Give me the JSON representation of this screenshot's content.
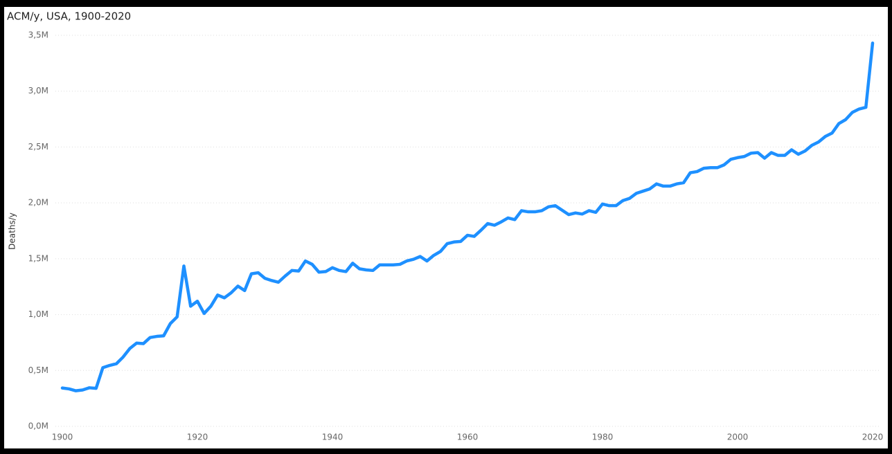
{
  "chart_data": {
    "type": "line",
    "title": "ACM/y, USA, 1900-2020",
    "y_label": "Deaths/y",
    "x": [
      1900,
      1901,
      1902,
      1903,
      1904,
      1905,
      1906,
      1907,
      1908,
      1909,
      1910,
      1911,
      1912,
      1913,
      1914,
      1915,
      1916,
      1917,
      1918,
      1919,
      1920,
      1921,
      1922,
      1923,
      1924,
      1925,
      1926,
      1927,
      1928,
      1929,
      1930,
      1931,
      1932,
      1933,
      1934,
      1935,
      1936,
      1937,
      1938,
      1939,
      1940,
      1941,
      1942,
      1943,
      1944,
      1945,
      1946,
      1947,
      1948,
      1949,
      1950,
      1951,
      1952,
      1953,
      1954,
      1955,
      1956,
      1957,
      1958,
      1959,
      1960,
      1961,
      1962,
      1963,
      1964,
      1965,
      1966,
      1967,
      1968,
      1969,
      1970,
      1971,
      1972,
      1973,
      1974,
      1975,
      1976,
      1977,
      1978,
      1979,
      1980,
      1981,
      1982,
      1983,
      1984,
      1985,
      1986,
      1987,
      1988,
      1989,
      1990,
      1991,
      1992,
      1993,
      1994,
      1995,
      1996,
      1997,
      1998,
      1999,
      2000,
      2001,
      2002,
      2003,
      2004,
      2005,
      2006,
      2007,
      2008,
      2009,
      2010,
      2011,
      2012,
      2013,
      2014,
      2015,
      2016,
      2017,
      2018,
      2019,
      2020
    ],
    "values": [
      343000,
      335000,
      318000,
      325000,
      345000,
      340000,
      525000,
      545000,
      560000,
      620000,
      697000,
      745000,
      740000,
      795000,
      805000,
      810000,
      920000,
      980000,
      1435000,
      1075000,
      1120000,
      1010000,
      1075000,
      1175000,
      1150000,
      1195000,
      1255000,
      1215000,
      1365000,
      1375000,
      1325000,
      1305000,
      1290000,
      1345000,
      1395000,
      1390000,
      1480000,
      1450000,
      1380000,
      1385000,
      1420000,
      1395000,
      1385000,
      1460000,
      1410000,
      1400000,
      1395000,
      1445000,
      1445000,
      1445000,
      1450000,
      1480000,
      1495000,
      1520000,
      1480000,
      1530000,
      1565000,
      1635000,
      1650000,
      1655000,
      1710000,
      1700000,
      1755000,
      1815000,
      1800000,
      1830000,
      1865000,
      1850000,
      1930000,
      1920000,
      1920000,
      1930000,
      1965000,
      1975000,
      1935000,
      1895000,
      1910000,
      1900000,
      1930000,
      1915000,
      1990000,
      1975000,
      1975000,
      2020000,
      2040000,
      2085000,
      2105000,
      2125000,
      2170000,
      2150000,
      2150000,
      2170000,
      2180000,
      2270000,
      2280000,
      2310000,
      2315000,
      2315000,
      2340000,
      2390000,
      2405000,
      2415000,
      2445000,
      2450000,
      2400000,
      2450000,
      2425000,
      2425000,
      2475000,
      2435000,
      2465000,
      2515000,
      2545000,
      2595000,
      2625000,
      2710000,
      2745000,
      2810000,
      2840000,
      2855000,
      3430000
    ],
    "color": "#1e90ff",
    "xlim": [
      1900,
      2020
    ],
    "xticks": [
      1900,
      1920,
      1940,
      1960,
      1980,
      2000,
      2020
    ],
    "ylim": [
      0,
      3500000
    ],
    "yticks": [
      {
        "value": 0,
        "label": "0,0M"
      },
      {
        "value": 500000,
        "label": "0,5M"
      },
      {
        "value": 1000000,
        "label": "1,0M"
      },
      {
        "value": 1500000,
        "label": "1,5M"
      },
      {
        "value": 2000000,
        "label": "2,0M"
      },
      {
        "value": 2500000,
        "label": "2,5M"
      },
      {
        "value": 3000000,
        "label": "3,0M"
      },
      {
        "value": 3500000,
        "label": "3,5M"
      }
    ],
    "grid": true
  }
}
